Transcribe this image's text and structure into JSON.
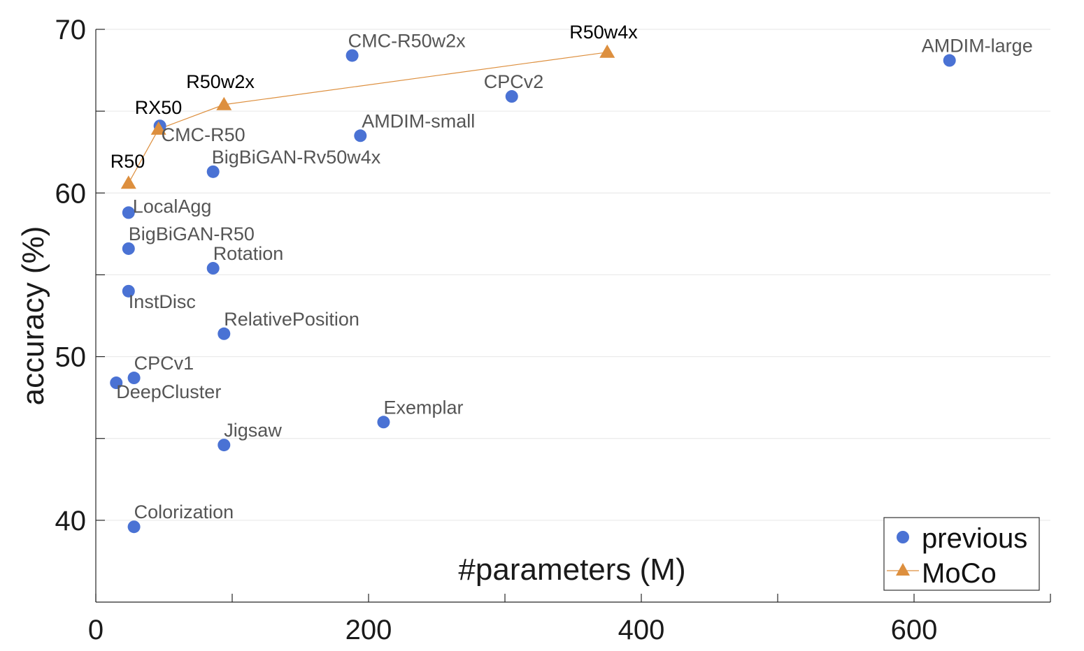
{
  "chart_data": {
    "type": "scatter",
    "xlabel": "#parameters (M)",
    "ylabel": "accuracy (%)",
    "xlim": [
      0,
      700
    ],
    "ylim": [
      35,
      70
    ],
    "xticks": [
      0,
      100,
      200,
      300,
      400,
      500,
      600,
      700
    ],
    "xtick_labels": [
      "0",
      "",
      "200",
      "",
      "400",
      "",
      "600",
      ""
    ],
    "yticks": [
      40,
      45,
      50,
      55,
      60,
      65,
      70
    ],
    "ytick_labels": [
      "40",
      "",
      "50",
      "",
      "60",
      "",
      "70"
    ],
    "grid": "horizontal",
    "legend": "bottom-right",
    "colors": {
      "previous": "#4a72d4",
      "moco": "#dd8f3e",
      "previous_label": "#555555",
      "moco_label": "#000000"
    },
    "series": [
      {
        "name": "previous",
        "marker": "circle",
        "points": [
          {
            "label": "CMC-R50w2x",
            "x": 188,
            "y": 68.4
          },
          {
            "label": "AMDIM-large",
            "x": 626,
            "y": 68.1
          },
          {
            "label": "CPCv2",
            "x": 305,
            "y": 65.9
          },
          {
            "label": "CMC-R50",
            "x": 47,
            "y": 64.1
          },
          {
            "label": "AMDIM-small",
            "x": 194,
            "y": 63.5
          },
          {
            "label": "BigBiGAN-Rv50w4x",
            "x": 86,
            "y": 61.3
          },
          {
            "label": "LocalAgg",
            "x": 24,
            "y": 58.8
          },
          {
            "label": "BigBiGAN-R50",
            "x": 24,
            "y": 56.6
          },
          {
            "label": "Rotation",
            "x": 86,
            "y": 55.4
          },
          {
            "label": "InstDisc",
            "x": 24,
            "y": 54.0
          },
          {
            "label": "RelativePosition",
            "x": 94,
            "y": 51.4
          },
          {
            "label": "CPCv1",
            "x": 28,
            "y": 48.7
          },
          {
            "label": "DeepCluster",
            "x": 15,
            "y": 48.4
          },
          {
            "label": "Exemplar",
            "x": 211,
            "y": 46.0
          },
          {
            "label": "Jigsaw",
            "x": 94,
            "y": 44.6
          },
          {
            "label": "Colorization",
            "x": 28,
            "y": 39.6
          }
        ]
      },
      {
        "name": "MoCo",
        "marker": "triangle",
        "connected": true,
        "points": [
          {
            "label": "R50",
            "x": 24,
            "y": 60.6
          },
          {
            "label": "RX50",
            "x": 46,
            "y": 63.9
          },
          {
            "label": "R50w2x",
            "x": 94,
            "y": 65.4
          },
          {
            "label": "R50w4x",
            "x": 375,
            "y": 68.6
          }
        ]
      }
    ],
    "legend_entries": [
      "previous",
      "MoCo"
    ]
  }
}
